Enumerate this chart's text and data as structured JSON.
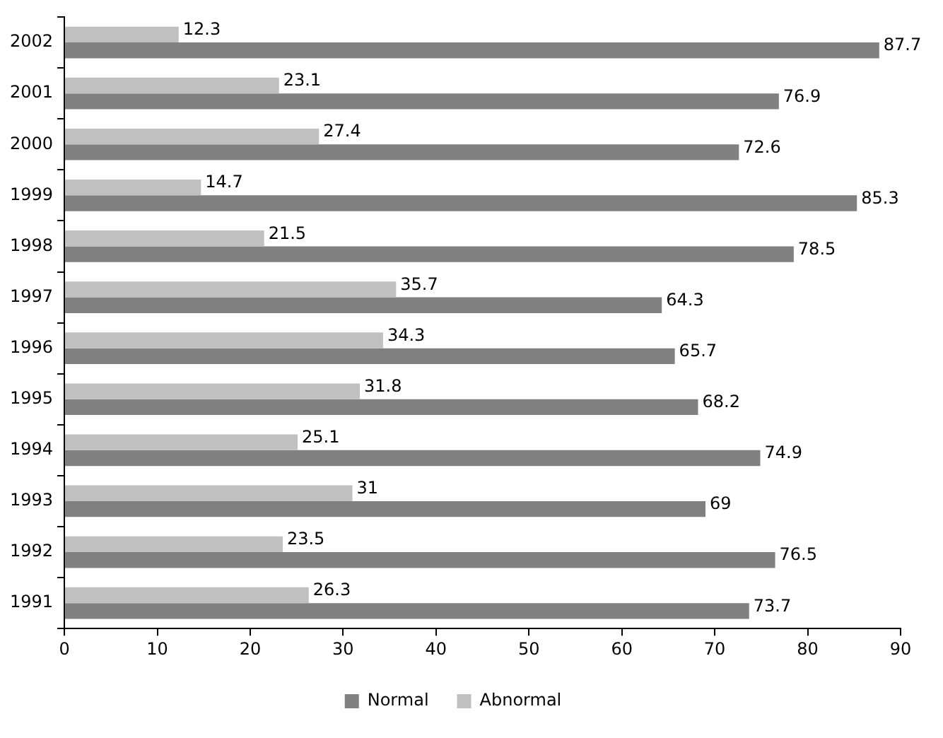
{
  "chart_data": {
    "type": "bar",
    "orientation": "horizontal",
    "categories": [
      "2002",
      "2001",
      "2000",
      "1999",
      "1998",
      "1997",
      "1996",
      "1995",
      "1994",
      "1993",
      "1992",
      "1991"
    ],
    "series": [
      {
        "name": "Normal",
        "color": "#808080",
        "values": [
          87.7,
          76.9,
          72.6,
          85.3,
          78.5,
          64.3,
          65.7,
          68.2,
          74.9,
          69,
          76.5,
          73.7
        ]
      },
      {
        "name": "Abnormal",
        "color": "#c0c0c0",
        "values": [
          12.3,
          23.1,
          27.4,
          14.7,
          21.5,
          35.7,
          34.3,
          31.8,
          25.1,
          31,
          23.5,
          26.3
        ]
      }
    ],
    "xlim": [
      0,
      90
    ],
    "xticks": [
      0,
      10,
      20,
      30,
      40,
      50,
      60,
      70,
      80,
      90
    ],
    "grid": false,
    "legend": "bottom",
    "data_labels": true
  }
}
